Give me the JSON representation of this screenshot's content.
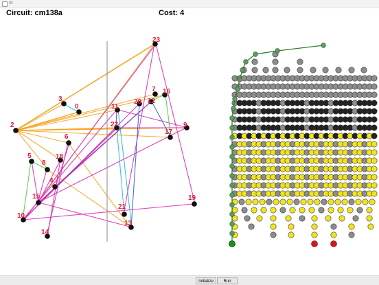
{
  "window": {
    "title": "m"
  },
  "header": {
    "circuit_text": "Circuit: cm138a",
    "cost_text": "Cost: 4"
  },
  "buttons": {
    "initialize": "Initialize",
    "run": "Run"
  },
  "colors": {
    "orange": "#f5a623",
    "magenta": "#d62fb5",
    "cyan": "#2eb6d4",
    "green": "#48d048",
    "blue": "#2f63c8",
    "purple": "#7a3fc4",
    "node_label": "#e0203a",
    "node_fill": "#111111",
    "divider": "#888888",
    "tree_line": "#2f7d2f",
    "tree_node": "#5b9c5b",
    "root_node": "#1d8f1d",
    "grid_gray": "#8d8d8d",
    "grid_black": "#222222",
    "grid_yellow": "#f1e321",
    "grid_red": "#cc1b1b"
  },
  "graph": {
    "nodes": [
      {
        "id": "23",
        "label": "23"
      },
      {
        "id": "3",
        "label": "3"
      },
      {
        "id": "0",
        "label": "0"
      },
      {
        "id": "11",
        "label": "11"
      },
      {
        "id": "7",
        "label": "7"
      },
      {
        "id": "16",
        "label": "16"
      },
      {
        "id": "20",
        "label": "20"
      },
      {
        "id": "12",
        "label": "12"
      },
      {
        "id": "2",
        "label": "2"
      },
      {
        "id": "22",
        "label": "22"
      },
      {
        "id": "9",
        "label": "9"
      },
      {
        "id": "17",
        "label": "17"
      },
      {
        "id": "6",
        "label": "6"
      },
      {
        "id": "5",
        "label": "5"
      },
      {
        "id": "18",
        "label": "18"
      },
      {
        "id": "8",
        "label": "8"
      },
      {
        "id": "4",
        "label": "4"
      },
      {
        "id": "15",
        "label": "15"
      },
      {
        "id": "10",
        "label": "10"
      },
      {
        "id": "19",
        "label": "19"
      },
      {
        "id": "21",
        "label": "21"
      },
      {
        "id": "13",
        "label": "13"
      },
      {
        "id": "14",
        "label": "14"
      }
    ]
  }
}
